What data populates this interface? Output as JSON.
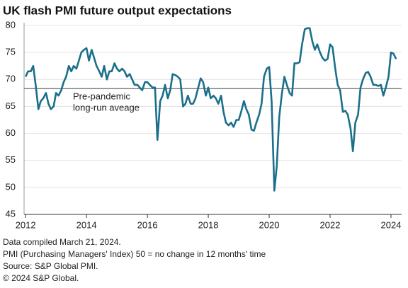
{
  "chart_data": {
    "type": "line",
    "title": "UK flash PMI future output expectations",
    "annotation": [
      "Pre-pandemic",
      "long-run aveage"
    ],
    "reference_line": 68.3,
    "reference_color": "#666666",
    "notes": [
      "Data compiled March 21, 2024.",
      "PMI (Purchasing Managers' Index) 50 = no change in 12 months' time",
      "Source: S&P Global PMI.",
      "© 2024 S&P Global."
    ],
    "xlim": [
      2011.95,
      2024.35
    ],
    "xticks": [
      2012,
      2014,
      2016,
      2018,
      2020,
      2022,
      2024
    ],
    "ylim": [
      45,
      80
    ],
    "yticks": [
      45,
      50,
      55,
      60,
      65,
      70,
      75,
      80
    ],
    "grid": true,
    "x": [
      2012,
      2012.08,
      2012.17,
      2012.25,
      2012.33,
      2012.42,
      2012.5,
      2012.58,
      2012.67,
      2012.75,
      2012.83,
      2012.92,
      2013,
      2013.08,
      2013.17,
      2013.25,
      2013.33,
      2013.42,
      2013.5,
      2013.58,
      2013.67,
      2013.75,
      2013.83,
      2013.92,
      2014,
      2014.08,
      2014.17,
      2014.25,
      2014.33,
      2014.42,
      2014.5,
      2014.58,
      2014.67,
      2014.75,
      2014.83,
      2014.92,
      2015,
      2015.08,
      2015.17,
      2015.25,
      2015.33,
      2015.42,
      2015.5,
      2015.58,
      2015.67,
      2015.75,
      2015.83,
      2015.92,
      2016,
      2016.08,
      2016.17,
      2016.25,
      2016.33,
      2016.42,
      2016.5,
      2016.58,
      2016.67,
      2016.75,
      2016.83,
      2016.92,
      2017,
      2017.08,
      2017.17,
      2017.25,
      2017.33,
      2017.42,
      2017.5,
      2017.58,
      2017.67,
      2017.75,
      2017.83,
      2017.92,
      2018,
      2018.08,
      2018.17,
      2018.25,
      2018.33,
      2018.42,
      2018.5,
      2018.58,
      2018.67,
      2018.75,
      2018.83,
      2018.92,
      2019,
      2019.08,
      2019.17,
      2019.25,
      2019.33,
      2019.42,
      2019.5,
      2019.58,
      2019.67,
      2019.75,
      2019.83,
      2019.92,
      2020,
      2020.08,
      2020.17,
      2020.25,
      2020.33,
      2020.42,
      2020.5,
      2020.58,
      2020.67,
      2020.75,
      2020.83,
      2020.92,
      2021,
      2021.08,
      2021.17,
      2021.25,
      2021.33,
      2021.42,
      2021.5,
      2021.58,
      2021.67,
      2021.75,
      2021.83,
      2021.92,
      2022,
      2022.08,
      2022.17,
      2022.25,
      2022.33,
      2022.42,
      2022.5,
      2022.58,
      2022.67,
      2022.75,
      2022.83,
      2022.92,
      2023,
      2023.08,
      2023.17,
      2023.25,
      2023.33,
      2023.42,
      2023.5,
      2023.58,
      2023.67,
      2023.75,
      2023.83,
      2023.92,
      2024,
      2024.08,
      2024.17
    ],
    "series": [
      {
        "color": "#1b6f8a",
        "values": [
          70.5,
          71.5,
          71.5,
          72.5,
          69,
          64.5,
          66,
          66.5,
          67.5,
          65.5,
          64.5,
          65,
          67.5,
          67,
          68,
          69.5,
          70.5,
          72.5,
          71.5,
          72.5,
          72,
          73.5,
          75,
          75.5,
          75.8,
          73.5,
          75.5,
          74,
          72.5,
          71.5,
          70.5,
          72.5,
          70,
          71.5,
          71.5,
          73,
          72,
          71.5,
          72,
          71.5,
          70.5,
          71,
          70,
          69,
          69,
          68.5,
          68,
          69.5,
          69.5,
          69,
          68.5,
          68.5,
          58.8,
          66,
          67,
          69,
          66.5,
          68,
          71,
          70.8,
          70.5,
          70,
          65,
          65.5,
          67,
          65.5,
          65.5,
          66.5,
          68.5,
          70.2,
          69.5,
          67,
          68.5,
          66.5,
          67,
          66.5,
          65.5,
          67,
          64,
          62,
          61.5,
          62,
          61.2,
          62.5,
          62.5,
          64,
          66,
          64.5,
          63.5,
          60.7,
          60.5,
          62,
          63.5,
          65.5,
          70.5,
          72,
          72.3,
          66,
          49.4,
          54,
          63,
          67.5,
          70.5,
          69,
          67.5,
          67,
          73,
          73,
          73.2,
          76.5,
          79.3,
          79.5,
          79.5,
          77,
          75.5,
          76.5,
          75,
          74,
          73.5,
          73.8,
          76.5,
          76,
          72,
          69,
          68,
          64,
          64.2,
          63.5,
          61,
          56.7,
          62,
          63.5,
          68.5,
          70,
          71.2,
          71.4,
          70.5,
          69,
          69,
          68.8,
          69,
          67,
          68.5,
          70.5,
          75,
          74.8,
          73.8
        ]
      }
    ]
  }
}
